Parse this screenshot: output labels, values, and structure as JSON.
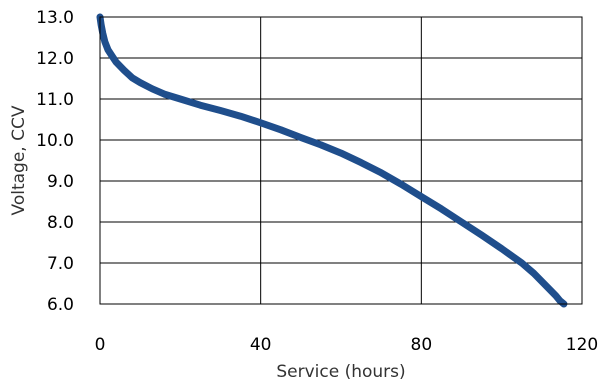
{
  "chart_data": {
    "type": "line",
    "title": "",
    "xlabel": "Service (hours)",
    "ylabel": "Voltage, CCV",
    "xlim": [
      0,
      120
    ],
    "ylim": [
      6.0,
      13.0
    ],
    "xticks": [
      0,
      40,
      80,
      120
    ],
    "xtick_labels": [
      "0",
      "40",
      "80",
      "120"
    ],
    "yticks": [
      6.0,
      7.0,
      8.0,
      9.0,
      10.0,
      11.0,
      12.0,
      13.0
    ],
    "ytick_labels": [
      "6.0",
      "7.0",
      "8.0",
      "9.0",
      "10.0",
      "11.0",
      "12.0",
      "13.0"
    ],
    "grid": true,
    "legend": "none",
    "series": [
      {
        "color": "#1f4e8c",
        "x": [
          0,
          0.3,
          0.7,
          1.2,
          2,
          3,
          4,
          6,
          8,
          10,
          13,
          16,
          20,
          25,
          30,
          35,
          40,
          45,
          50,
          55,
          60,
          65,
          70,
          75,
          80,
          85,
          90,
          95,
          100,
          105,
          108,
          110,
          112,
          113.5,
          114.5,
          115.5
        ],
        "y": [
          13.0,
          12.8,
          12.6,
          12.4,
          12.2,
          12.05,
          11.9,
          11.7,
          11.52,
          11.4,
          11.25,
          11.12,
          11.0,
          10.85,
          10.72,
          10.58,
          10.42,
          10.25,
          10.06,
          9.88,
          9.68,
          9.45,
          9.2,
          8.92,
          8.62,
          8.32,
          8.0,
          7.68,
          7.35,
          7.0,
          6.75,
          6.55,
          6.35,
          6.2,
          6.08,
          6.0
        ]
      }
    ]
  }
}
